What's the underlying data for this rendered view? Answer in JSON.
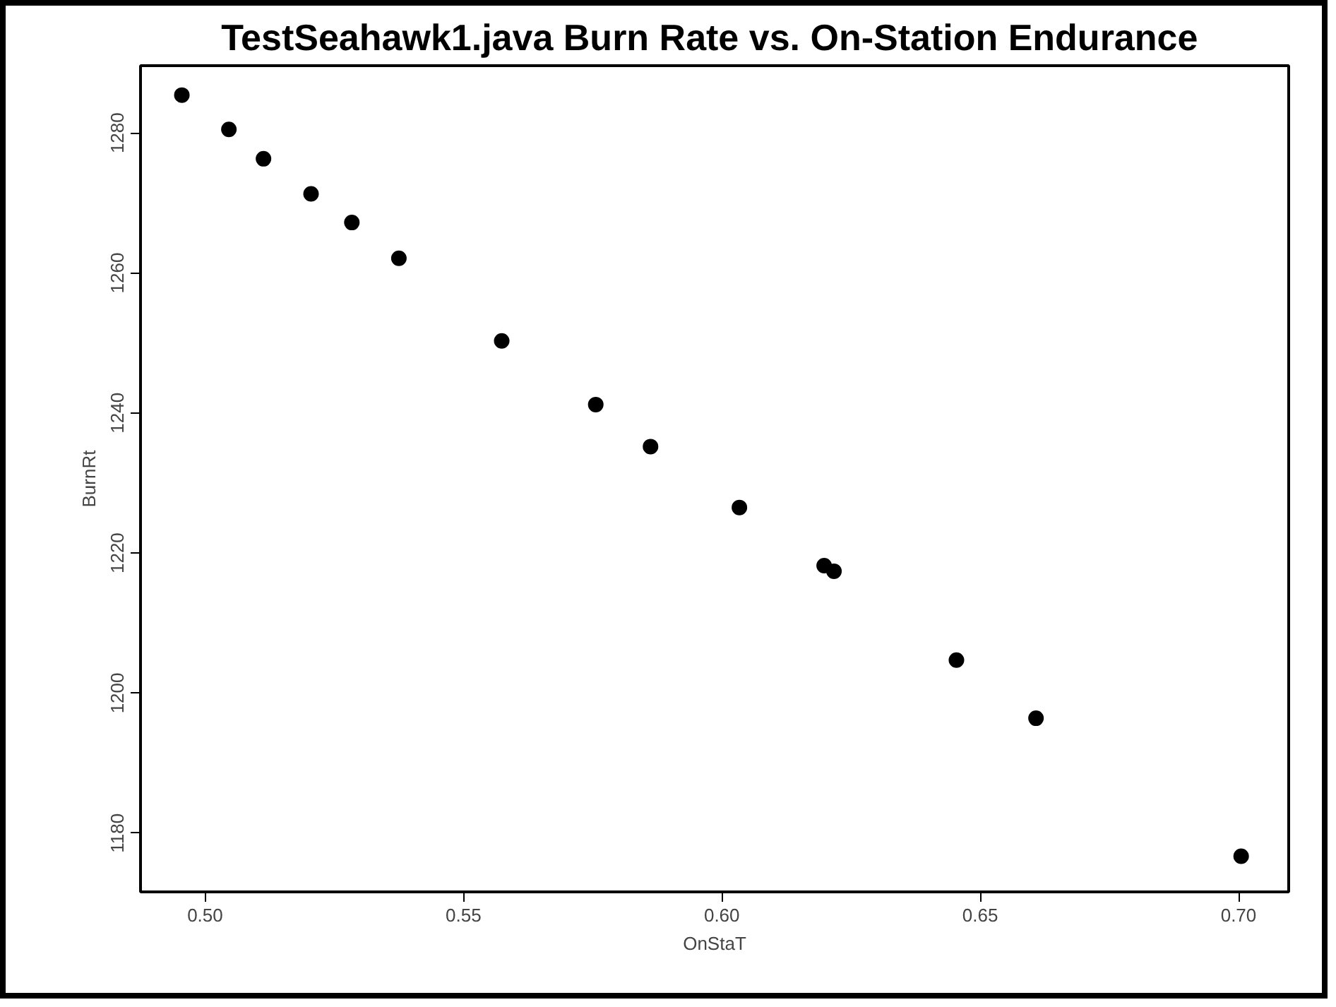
{
  "chart_data": {
    "type": "scatter",
    "title": "TestSeahawk1.java  Burn Rate vs. On-Station Endurance",
    "xlabel": "OnStaT",
    "ylabel": "BurnRt",
    "x": [
      0.4955,
      0.5046,
      0.5113,
      0.5205,
      0.5284,
      0.5375,
      0.5574,
      0.5756,
      0.5862,
      0.6034,
      0.6198,
      0.6217,
      0.6454,
      0.6608,
      0.7005
    ],
    "series": [
      {
        "color": "#000000",
        "values": [
          1285.4,
          1280.5,
          1276.3,
          1271.3,
          1267.2,
          1262.1,
          1250.3,
          1241.2,
          1235.2,
          1226.5,
          1218.2,
          1217.4,
          1204.7,
          1196.4,
          1176.7
        ]
      }
    ],
    "xlim": [
      0.4875,
      0.7097
    ],
    "ylim": [
      1171.6,
      1289.6
    ],
    "xticks": [
      {
        "value": 0.5,
        "label": "0.50"
      },
      {
        "value": 0.55,
        "label": "0.55"
      },
      {
        "value": 0.6,
        "label": "0.60"
      },
      {
        "value": 0.65,
        "label": "0.65"
      },
      {
        "value": 0.7,
        "label": "0.70"
      }
    ],
    "yticks": [
      1180,
      1200,
      1220,
      1240,
      1260,
      1280
    ],
    "grid": false,
    "marker": "circle"
  }
}
